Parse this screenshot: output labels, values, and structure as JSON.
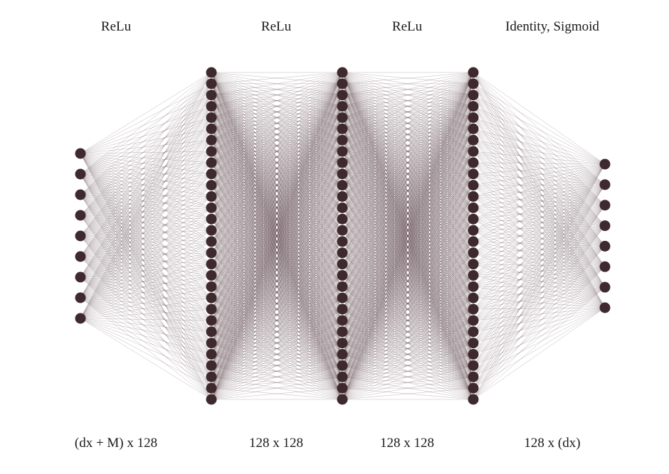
{
  "diagram": {
    "activations": [
      "ReLu",
      "ReLu",
      "ReLu",
      "Identity,  Sigmoid"
    ],
    "dimensions": [
      "(dx + M) x 128",
      "128 x 128",
      "128 x 128",
      "128 x  (dx)"
    ],
    "layer_node_counts": [
      9,
      30,
      30,
      30,
      8
    ],
    "colors": {
      "node": "#3e2a2e",
      "edge": "#5a4349",
      "text": "#1a1a1a"
    }
  }
}
